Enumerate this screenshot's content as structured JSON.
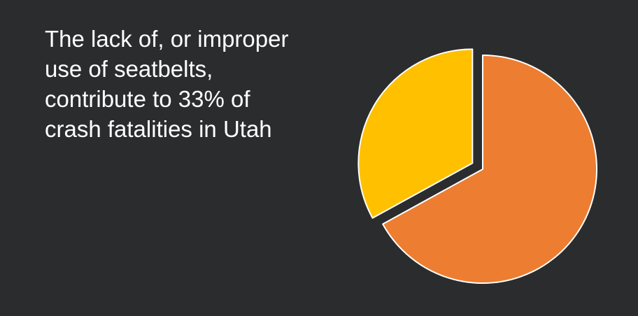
{
  "slide": {
    "headline_lines": [
      "The lack of, or improper",
      "use of seatbelts,",
      "contribute to 33% of",
      "crash fatalities in Utah"
    ]
  },
  "chart_data": {
    "type": "pie",
    "values": [
      33,
      67
    ],
    "colors": [
      "#ffc000",
      "#ed7d31"
    ],
    "exploded": [
      true,
      false
    ],
    "slice_border_color": "#ffffff",
    "legend": "none",
    "title": ""
  }
}
